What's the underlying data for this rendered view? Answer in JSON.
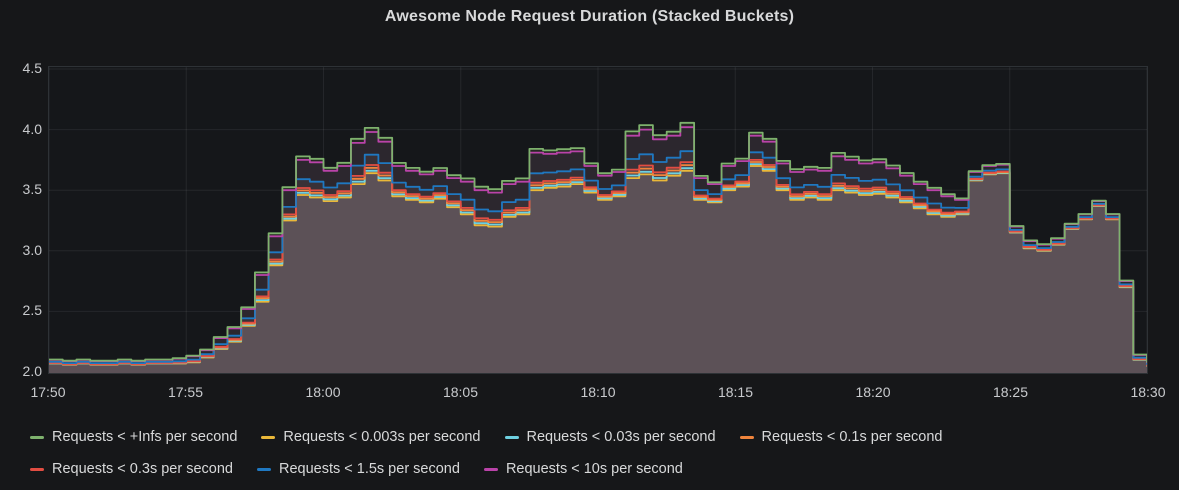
{
  "title": "Awesome Node Request Duration (Stacked Buckets)",
  "colors": {
    "page_bg": "#161719",
    "plot_bg": "#15171a",
    "plot_border": "#2e3236",
    "grid": "rgba(255,255,255,0.07)",
    "title_text": "#d8d9da",
    "axis_text": "#c9cbce",
    "legend_text": "#d8d9da"
  },
  "chart_data": {
    "type": "area",
    "title": "Awesome Node Request Duration (Stacked Buckets)",
    "interpolation": "step-after",
    "grid": true,
    "legend_position": "bottom",
    "x_axis": {
      "tick_labels": [
        "17:50",
        "17:55",
        "18:00",
        "18:05",
        "18:10",
        "18:15",
        "18:20",
        "18:25",
        "18:30"
      ],
      "start_minutes": 0,
      "end_minutes": 40,
      "step_minutes": 0.5
    },
    "y_axis": {
      "tick_labels": [
        "4.5",
        "4.0",
        "3.5",
        "3.0",
        "2.5",
        "2.0"
      ],
      "min": 2.0,
      "max": 4.5,
      "tick_step": 0.5
    },
    "model_note": "Cumulative histogram buckets; each series value = base_values[i] + spread_fraction * spread_values[i]. base = 'Requests < 0.003s' series; base + spread = 'Requests < 10s' series.",
    "base_values": [
      2.07,
      2.06,
      2.07,
      2.06,
      2.06,
      2.07,
      2.06,
      2.07,
      2.07,
      2.07,
      2.08,
      2.12,
      2.19,
      2.25,
      2.38,
      2.58,
      2.88,
      3.25,
      3.46,
      3.44,
      3.41,
      3.44,
      3.55,
      3.64,
      3.58,
      3.45,
      3.42,
      3.4,
      3.43,
      3.36,
      3.3,
      3.21,
      3.2,
      3.28,
      3.3,
      3.5,
      3.52,
      3.53,
      3.55,
      3.48,
      3.42,
      3.45,
      3.6,
      3.63,
      3.58,
      3.62,
      3.66,
      3.42,
      3.4,
      3.5,
      3.53,
      3.7,
      3.66,
      3.5,
      3.42,
      3.44,
      3.42,
      3.5,
      3.48,
      3.46,
      3.47,
      3.44,
      3.4,
      3.35,
      3.3,
      3.28,
      3.3,
      3.58,
      3.63,
      3.64,
      3.15,
      3.02,
      3.0,
      3.05,
      3.18,
      3.26,
      3.37,
      3.26,
      2.7,
      2.1,
      2.05
    ],
    "spread_values": [
      0.03,
      0.03,
      0.03,
      0.03,
      0.03,
      0.03,
      0.03,
      0.03,
      0.03,
      0.04,
      0.05,
      0.06,
      0.09,
      0.11,
      0.14,
      0.22,
      0.24,
      0.25,
      0.29,
      0.29,
      0.25,
      0.26,
      0.34,
      0.34,
      0.32,
      0.25,
      0.24,
      0.23,
      0.23,
      0.24,
      0.27,
      0.29,
      0.28,
      0.27,
      0.27,
      0.31,
      0.28,
      0.28,
      0.27,
      0.22,
      0.2,
      0.2,
      0.35,
      0.37,
      0.34,
      0.33,
      0.36,
      0.18,
      0.15,
      0.2,
      0.21,
      0.25,
      0.24,
      0.22,
      0.23,
      0.23,
      0.24,
      0.28,
      0.27,
      0.26,
      0.26,
      0.24,
      0.22,
      0.2,
      0.2,
      0.17,
      0.12,
      0.07,
      0.07,
      0.07,
      0.05,
      0.06,
      0.05,
      0.05,
      0.04,
      0.04,
      0.04,
      0.04,
      0.05,
      0.04,
      0.03
    ],
    "series": [
      {
        "name": "Requests < 0.003s per second",
        "color": "#EAB839",
        "spread_fraction": 0.0
      },
      {
        "name": "Requests < 0.03s per second",
        "color": "#6ED0E0",
        "spread_fraction": 0.06
      },
      {
        "name": "Requests < 0.1s per second",
        "color": "#EF843C",
        "spread_fraction": 0.13
      },
      {
        "name": "Requests < 0.3s per second",
        "color": "#E24D42",
        "spread_fraction": 0.2
      },
      {
        "name": "Requests < 1.5s per second",
        "color": "#1F78C1",
        "spread_fraction": 0.45
      },
      {
        "name": "Requests < 10s per second",
        "color": "#BA43A9",
        "spread_fraction": 1.0
      },
      {
        "name": "Requests < +Infs per second",
        "color": "#7EB26D",
        "spread_fraction": 1.1
      }
    ],
    "band_colors": [
      "#5c5157",
      "#55484e",
      "#4e4349",
      "#463c42",
      "#393137",
      "#2c272e",
      "#262923"
    ]
  },
  "legend": {
    "rows": [
      [
        {
          "label": "Requests < +Infs per second",
          "color": "#7EB26D"
        },
        {
          "label": "Requests < 0.003s per second",
          "color": "#EAB839"
        },
        {
          "label": "Requests < 0.03s per second",
          "color": "#6ED0E0"
        },
        {
          "label": "Requests < 0.1s per second",
          "color": "#EF843C"
        }
      ],
      [
        {
          "label": "Requests < 0.3s per second",
          "color": "#E24D42"
        },
        {
          "label": "Requests < 1.5s per second",
          "color": "#1F78C1"
        },
        {
          "label": "Requests < 10s per second",
          "color": "#BA43A9"
        }
      ]
    ]
  }
}
